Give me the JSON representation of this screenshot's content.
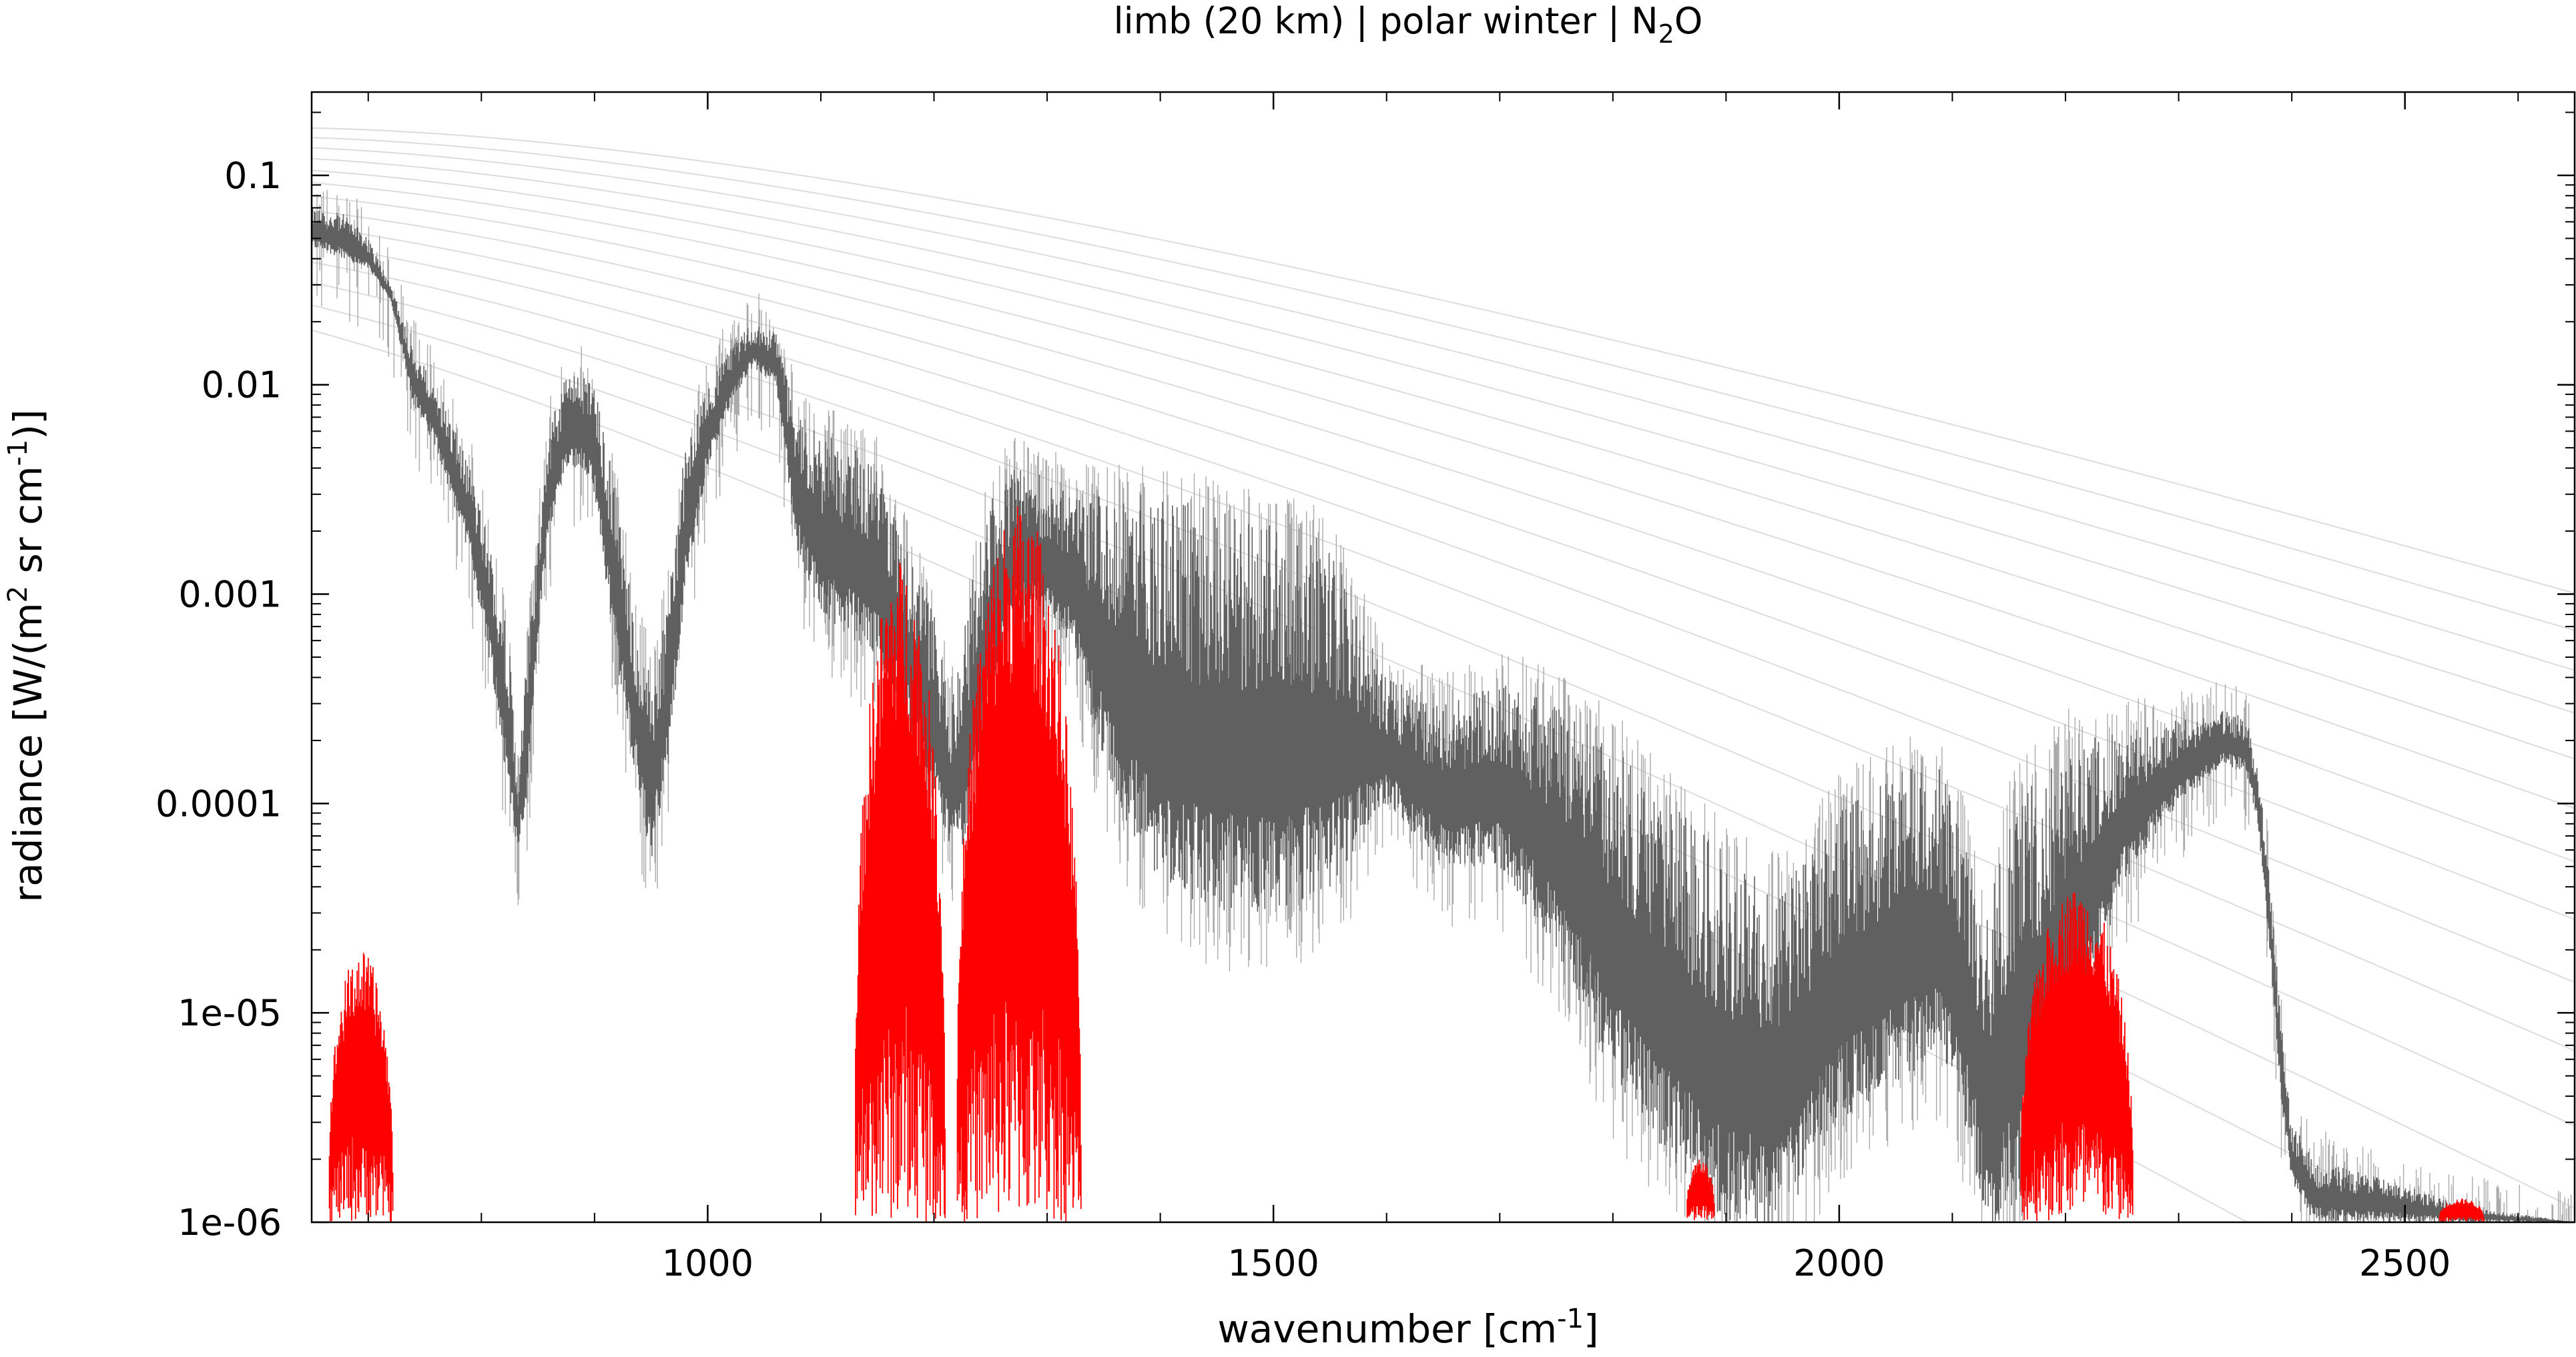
{
  "chart_data": {
    "type": "line",
    "title_parts": {
      "main": "limb (20 km) | polar winter | N",
      "sub": "2",
      "tail": "O"
    },
    "xlabel_parts": {
      "main": "wavenumber [cm",
      "sup": "-1",
      "tail": "]"
    },
    "ylabel_parts": {
      "a": "radiance [W/(m",
      "sup1": "2",
      "b": " sr cm",
      "sup2": "-1",
      "c": ")]"
    },
    "x_range": [
      650,
      2650
    ],
    "y_range": [
      1e-06,
      0.25
    ],
    "y_scale": "log",
    "x_ticks": [
      1000,
      1500,
      2000,
      2500
    ],
    "x_tick_labels": [
      "1000",
      "1500",
      "2000",
      "2500"
    ],
    "y_ticks": [
      0.1,
      0.01,
      0.001,
      0.0001,
      1e-05,
      1e-06
    ],
    "y_tick_labels": [
      "0.1",
      "0.01",
      "0.001",
      "0.0001",
      "1e-05",
      "1e-06"
    ],
    "grid": false,
    "legend": "none",
    "planck_temperatures_K": [
      180,
      190,
      200,
      210,
      220,
      230,
      240,
      250,
      260,
      270,
      280,
      290,
      300,
      310
    ],
    "series": [
      {
        "role": "total-radiance",
        "color": "#606060",
        "envelope_upper": [
          [
            650,
            0.07
          ],
          [
            680,
            0.065
          ],
          [
            700,
            0.05
          ],
          [
            720,
            0.03
          ],
          [
            740,
            0.015
          ],
          [
            760,
            0.01
          ],
          [
            790,
            0.004
          ],
          [
            810,
            0.0015
          ],
          [
            825,
            0.0006
          ],
          [
            832,
            0.00012
          ],
          [
            840,
            0.0005
          ],
          [
            850,
            0.002
          ],
          [
            860,
            0.006
          ],
          [
            875,
            0.012
          ],
          [
            890,
            0.011
          ],
          [
            900,
            0.01
          ],
          [
            915,
            0.004
          ],
          [
            935,
            0.0008
          ],
          [
            950,
            0.0004
          ],
          [
            965,
            0.001
          ],
          [
            980,
            0.005
          ],
          [
            1000,
            0.01
          ],
          [
            1020,
            0.015
          ],
          [
            1040,
            0.02
          ],
          [
            1060,
            0.018
          ],
          [
            1080,
            0.007
          ],
          [
            1100,
            0.006
          ],
          [
            1130,
            0.005
          ],
          [
            1150,
            0.004
          ],
          [
            1170,
            0.002
          ],
          [
            1200,
            0.0008
          ],
          [
            1215,
            0.0003
          ],
          [
            1230,
            0.001
          ],
          [
            1250,
            0.003
          ],
          [
            1270,
            0.004
          ],
          [
            1290,
            0.004
          ],
          [
            1320,
            0.003
          ],
          [
            1360,
            0.003
          ],
          [
            1400,
            0.003
          ],
          [
            1450,
            0.0025
          ],
          [
            1500,
            0.0022
          ],
          [
            1550,
            0.0018
          ],
          [
            1600,
            0.0004
          ],
          [
            1650,
            0.0003
          ],
          [
            1700,
            0.0004
          ],
          [
            1750,
            0.0003
          ],
          [
            1800,
            0.0002
          ],
          [
            1850,
            0.0001
          ],
          [
            1900,
            6e-05
          ],
          [
            1950,
            4e-05
          ],
          [
            2000,
            0.0001
          ],
          [
            2060,
            0.00015
          ],
          [
            2090,
            0.00015
          ],
          [
            2110,
            8e-05
          ],
          [
            2130,
            3e-05
          ],
          [
            2150,
            0.0001
          ],
          [
            2200,
            0.0002
          ],
          [
            2250,
            0.00022
          ],
          [
            2300,
            0.00025
          ],
          [
            2340,
            0.00028
          ],
          [
            2360,
            0.00026
          ],
          [
            2370,
            0.00015
          ],
          [
            2380,
            5e-05
          ],
          [
            2390,
            1e-05
          ],
          [
            2400,
            3e-06
          ],
          [
            2420,
            2e-06
          ],
          [
            2500,
            1.5e-06
          ],
          [
            2550,
            1.2e-06
          ],
          [
            2650,
            1e-06
          ]
        ],
        "envelope_lower": [
          [
            650,
            0.045
          ],
          [
            680,
            0.04
          ],
          [
            700,
            0.035
          ],
          [
            720,
            0.025
          ],
          [
            740,
            0.008
          ],
          [
            760,
            0.005
          ],
          [
            790,
            0.0015
          ],
          [
            810,
            0.0004
          ],
          [
            825,
            0.0001
          ],
          [
            832,
            6e-05
          ],
          [
            840,
            0.0001
          ],
          [
            850,
            0.0006
          ],
          [
            860,
            0.002
          ],
          [
            875,
            0.004
          ],
          [
            890,
            0.004
          ],
          [
            900,
            0.003
          ],
          [
            915,
            0.0007
          ],
          [
            935,
            0.00015
          ],
          [
            950,
            5e-05
          ],
          [
            965,
            0.00015
          ],
          [
            980,
            0.001
          ],
          [
            1000,
            0.004
          ],
          [
            1020,
            0.008
          ],
          [
            1040,
            0.012
          ],
          [
            1060,
            0.01
          ],
          [
            1080,
            0.0015
          ],
          [
            1100,
            0.0008
          ],
          [
            1130,
            0.0006
          ],
          [
            1150,
            0.0005
          ],
          [
            1170,
            0.0003
          ],
          [
            1200,
            0.0001
          ],
          [
            1215,
            6e-05
          ],
          [
            1230,
            6e-05
          ],
          [
            1250,
            0.0003
          ],
          [
            1270,
            0.0007
          ],
          [
            1290,
            0.0008
          ],
          [
            1320,
            0.0006
          ],
          [
            1360,
            0.0001
          ],
          [
            1400,
            4e-05
          ],
          [
            1450,
            3e-05
          ],
          [
            1500,
            3e-05
          ],
          [
            1550,
            4e-05
          ],
          [
            1600,
            0.0001
          ],
          [
            1650,
            5e-05
          ],
          [
            1700,
            5e-05
          ],
          [
            1750,
            2e-05
          ],
          [
            1800,
            5e-06
          ],
          [
            1850,
            2e-06
          ],
          [
            1900,
            1e-06
          ],
          [
            1950,
            1e-06
          ],
          [
            2000,
            3e-06
          ],
          [
            2060,
            5e-06
          ],
          [
            2090,
            6e-06
          ],
          [
            2110,
            3e-06
          ],
          [
            2130,
            1e-06
          ],
          [
            2150,
            1e-06
          ],
          [
            2200,
            5e-06
          ],
          [
            2250,
            4e-05
          ],
          [
            2300,
            0.0001
          ],
          [
            2340,
            0.00015
          ],
          [
            2360,
            0.00014
          ],
          [
            2370,
            8e-05
          ],
          [
            2380,
            2e-05
          ],
          [
            2390,
            4e-06
          ],
          [
            2400,
            1.5e-06
          ],
          [
            2420,
            1e-06
          ],
          [
            2500,
            1e-06
          ],
          [
            2550,
            1e-06
          ],
          [
            2650,
            1e-06
          ]
        ]
      },
      {
        "role": "n2o-contribution",
        "color": "#ff0000",
        "bands": [
          {
            "x_start": 665,
            "x_end": 722,
            "peak": 2e-05
          },
          {
            "x_start": 1130,
            "x_end": 1210,
            "peak": 0.0015
          },
          {
            "x_start": 1220,
            "x_end": 1330,
            "peak": 0.0028
          },
          {
            "x_start": 2160,
            "x_end": 2260,
            "peak": 4e-05
          },
          {
            "x_start": 1865,
            "x_end": 1890,
            "peak": 2e-06
          },
          {
            "x_start": 2530,
            "x_end": 2570,
            "peak": 1.3e-06
          }
        ]
      }
    ]
  }
}
